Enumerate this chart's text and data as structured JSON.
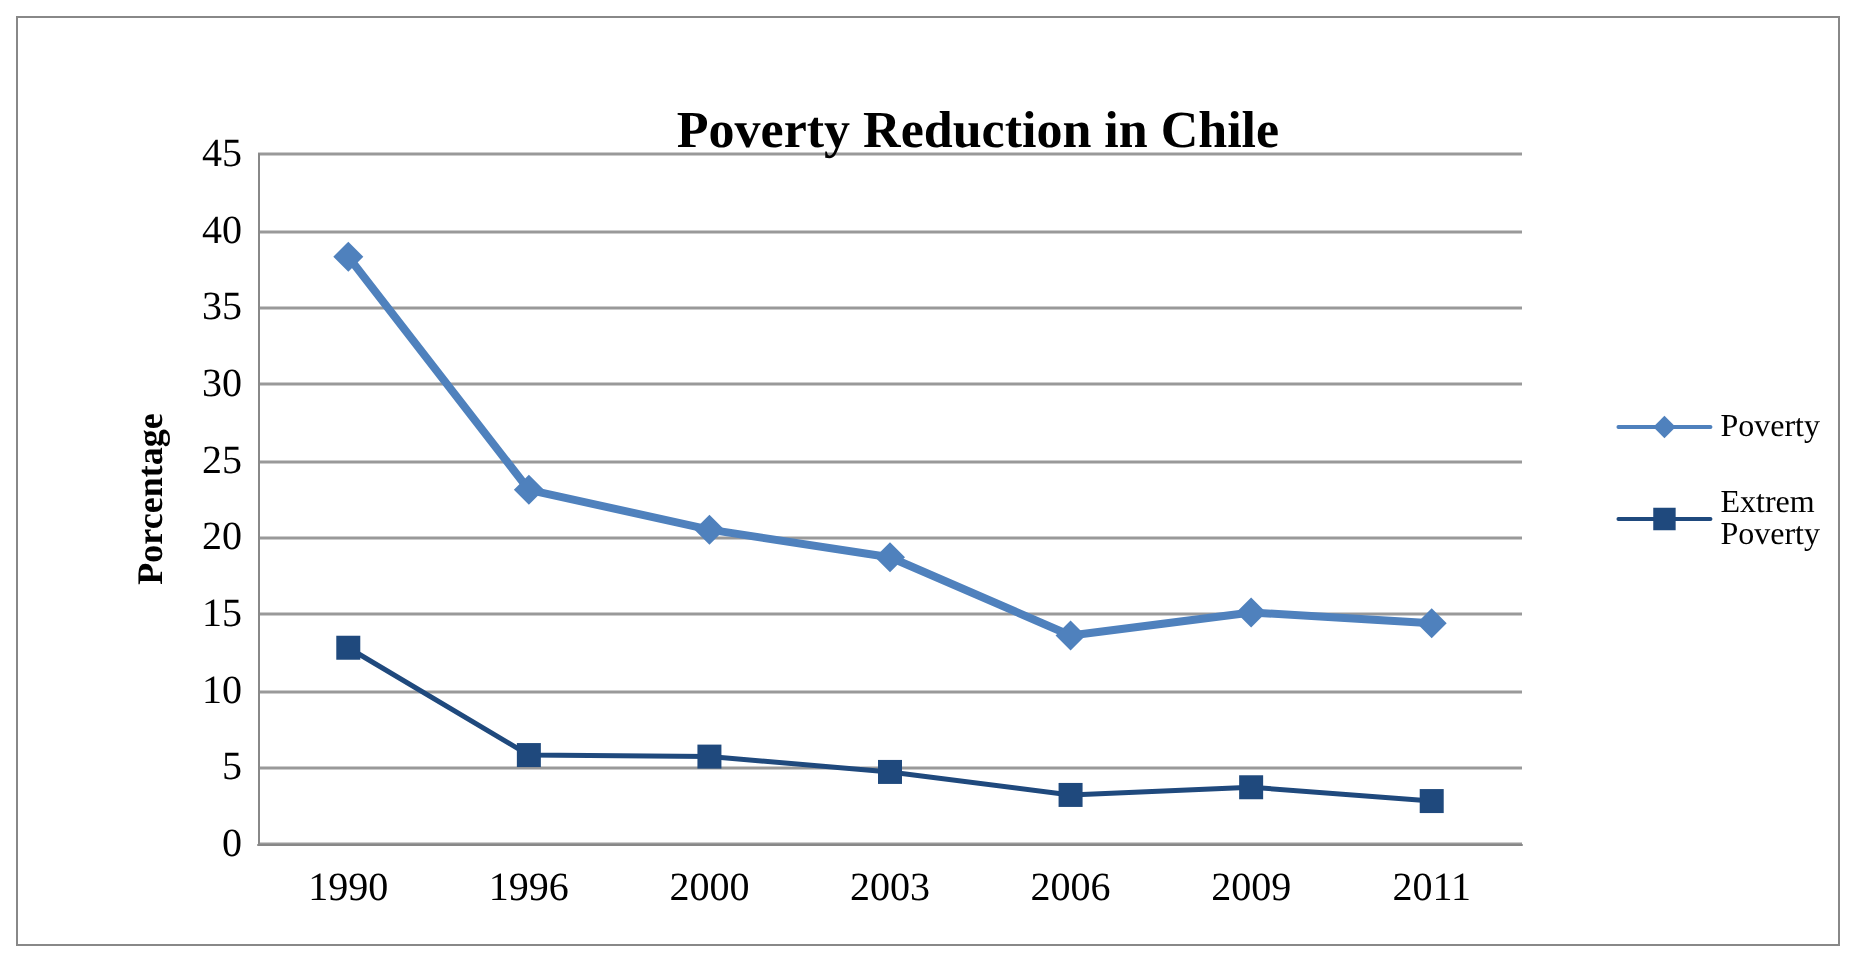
{
  "chart_data": {
    "type": "line",
    "title": "Poverty Reduction in Chile",
    "ylabel": "Porcentage",
    "categories": [
      "1990",
      "1996",
      "2000",
      "2003",
      "2006",
      "2009",
      "2011"
    ],
    "series": [
      {
        "name": "Poverty",
        "color": "#4f81bd",
        "marker": "diamond",
        "values": [
          38.3,
          23.1,
          20.5,
          18.7,
          13.6,
          15.1,
          14.4
        ]
      },
      {
        "name": "Extrem\nPoverty",
        "color": "#1f497d",
        "marker": "square",
        "values": [
          12.8,
          5.8,
          5.7,
          4.7,
          3.2,
          3.7,
          2.8
        ]
      }
    ],
    "ylim": [
      0,
      45
    ],
    "yticks": [
      0,
      5,
      10,
      15,
      20,
      25,
      30,
      35,
      40,
      45
    ],
    "grid": "y",
    "legend": "right",
    "line_style": "solid"
  }
}
